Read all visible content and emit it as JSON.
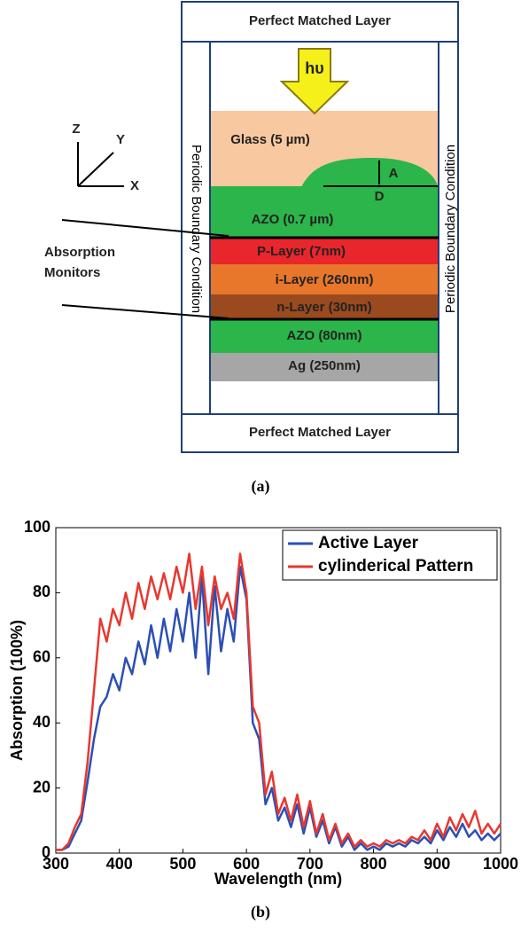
{
  "diagram": {
    "top_layer": "Perfect Matched Layer",
    "bottom_layer": "Perfect Matched Layer",
    "light": "hυ",
    "glass": "Glass (5 µm)",
    "dim_a": "A",
    "dim_d": "D",
    "azo_top": "AZO (0.7 µm)",
    "p_layer": "P-Layer (7nm)",
    "i_layer": "i-Layer (260nm)",
    "n_layer": "n-Layer (30nm)",
    "azo_bottom": "AZO (80nm)",
    "ag": "Ag (250nm)",
    "left_boundary": "Periodic Boundary Condition",
    "right_boundary": "Periodic Boundary Condition",
    "monitors": [
      "Absorption",
      "Monitors"
    ],
    "axes": [
      "Z",
      "Y",
      "X"
    ],
    "caption": "(a)"
  },
  "chart_data": {
    "type": "line",
    "caption": "(b)",
    "x_label": "Wavelength (nm)",
    "y_label": "Absorption (100%)",
    "xlim": [
      300,
      1000
    ],
    "ylim": [
      0,
      100
    ],
    "xticks": [
      300,
      400,
      500,
      600,
      700,
      800,
      900,
      1000
    ],
    "yticks": [
      0,
      20,
      40,
      60,
      80,
      100
    ],
    "legend": "upper right",
    "x": [
      300,
      310,
      320,
      330,
      340,
      350,
      360,
      370,
      380,
      390,
      400,
      410,
      420,
      430,
      440,
      450,
      460,
      470,
      480,
      490,
      500,
      510,
      520,
      530,
      540,
      550,
      560,
      570,
      580,
      590,
      600,
      610,
      620,
      630,
      640,
      650,
      660,
      670,
      680,
      690,
      700,
      710,
      720,
      730,
      740,
      750,
      760,
      770,
      780,
      790,
      800,
      810,
      820,
      830,
      840,
      850,
      860,
      870,
      880,
      890,
      900,
      910,
      920,
      930,
      940,
      950,
      960,
      970,
      980,
      990,
      1000
    ],
    "series": [
      {
        "name": "Active Layer",
        "color": "#2b4fb5",
        "values": [
          1,
          1,
          2,
          6,
          10,
          22,
          35,
          45,
          48,
          55,
          50,
          60,
          55,
          65,
          58,
          70,
          60,
          72,
          62,
          75,
          65,
          80,
          60,
          85,
          55,
          82,
          62,
          75,
          65,
          88,
          78,
          40,
          35,
          15,
          20,
          10,
          14,
          8,
          15,
          6,
          14,
          5,
          10,
          3,
          8,
          2,
          5,
          1,
          3,
          1,
          2,
          1,
          3,
          2,
          3,
          2,
          4,
          3,
          5,
          3,
          7,
          4,
          8,
          5,
          9,
          5,
          7,
          4,
          6,
          4,
          6
        ]
      },
      {
        "name": "cylinderical Pattern",
        "color": "#e8382e",
        "values": [
          1,
          1,
          3,
          8,
          12,
          28,
          50,
          72,
          65,
          75,
          70,
          80,
          72,
          83,
          75,
          85,
          78,
          86,
          78,
          88,
          80,
          92,
          75,
          88,
          70,
          85,
          75,
          80,
          72,
          92,
          80,
          45,
          40,
          18,
          25,
          12,
          17,
          10,
          18,
          8,
          16,
          6,
          12,
          4,
          9,
          3,
          6,
          2,
          4,
          2,
          3,
          2,
          4,
          3,
          4,
          3,
          5,
          4,
          7,
          4,
          9,
          5,
          11,
          7,
          12,
          8,
          13,
          6,
          9,
          6,
          9
        ]
      }
    ]
  }
}
